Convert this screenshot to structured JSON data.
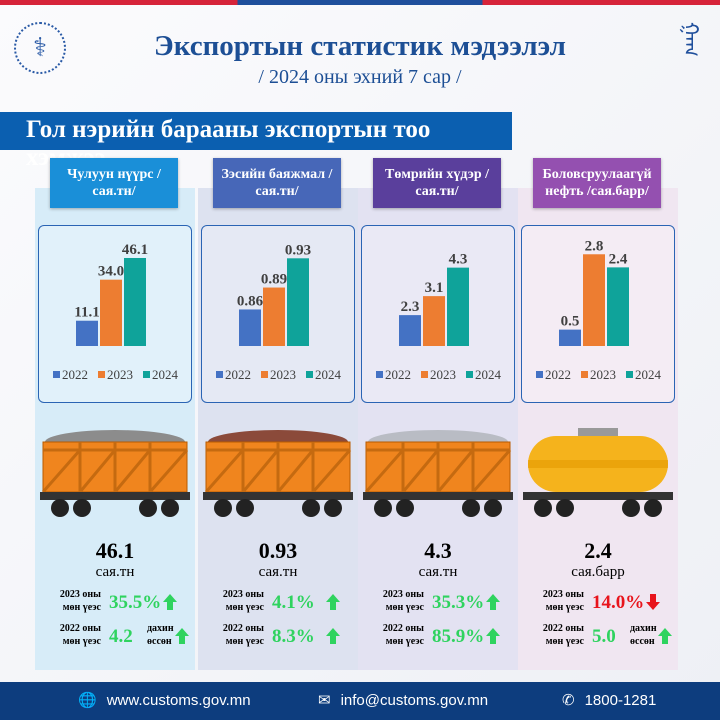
{
  "header": {
    "title": "Экспортын статистик мэдээлэл",
    "subtitle": "/ 2024 оны эхний  7 сар /"
  },
  "section_title": "Гол нэрийн барааны экспортын тоо хэмжээ",
  "colors": {
    "2022": "#4472c4",
    "2023": "#ed7d31",
    "2024": "#0fa39a",
    "up": "#2fd35f",
    "down": "#e8141c"
  },
  "chart_data": [
    {
      "type": "bar",
      "title": "Чулуун нүүрс /сая.тн/",
      "categories": [
        "2022",
        "2023",
        "2024"
      ],
      "values": [
        11.1,
        34.0,
        46.1
      ],
      "labels": [
        "11.1",
        "34.0",
        "46.1"
      ],
      "ylim": [
        -3,
        50
      ]
    },
    {
      "type": "bar",
      "title": "Зэсийн баяжмал /сая.тн/",
      "categories": [
        "2022",
        "2023",
        "2024"
      ],
      "values": [
        0.86,
        0.89,
        0.93
      ],
      "labels": [
        "0.86",
        "0.89",
        "0.93"
      ],
      "ylim": [
        0.81,
        0.94
      ]
    },
    {
      "type": "bar",
      "title": "Төмрийн хүдэр /сая.тн/",
      "categories": [
        "2022",
        "2023",
        "2024"
      ],
      "values": [
        2.3,
        3.1,
        4.3
      ],
      "labels": [
        "2.3",
        "3.1",
        "4.3"
      ],
      "ylim": [
        1.0,
        5.0
      ]
    },
    {
      "type": "bar",
      "title": "Боловсруулаагүй нефть /сая.барр/",
      "categories": [
        "2022",
        "2023",
        "2024"
      ],
      "values": [
        0.5,
        2.8,
        2.4
      ],
      "labels": [
        "0.5",
        "2.8",
        "2.4"
      ],
      "ylim": [
        0,
        2.9
      ]
    }
  ],
  "items": [
    {
      "head": "Чулуун нүүрс /сая.тн/",
      "value": "46.1",
      "unit": "сая.тн",
      "c1": {
        "label": "2023 оны мөн үеэс",
        "value": "35.5%",
        "dir": "up"
      },
      "c2": {
        "label": "2022 оны мөн үеэс",
        "value": "4.2",
        "suffix": "дахин өссөн",
        "dir": "up"
      }
    },
    {
      "head": "Зэсийн баяжмал /сая.тн/",
      "value": "0.93",
      "unit": "сая.тн",
      "c1": {
        "label": "2023 оны мөн үеэс",
        "value": "4.1%",
        "dir": "up"
      },
      "c2": {
        "label": "2022 оны мөн үеэс",
        "value": "8.3%",
        "dir": "up"
      }
    },
    {
      "head": "Төмрийн хүдэр /сая.тн/",
      "value": "4.3",
      "unit": "сая.тн",
      "c1": {
        "label": "2023 оны мөн үеэс",
        "value": "35.3%",
        "dir": "up"
      },
      "c2": {
        "label": "2022 оны мөн үеэс",
        "value": "85.9%",
        "dir": "up"
      }
    },
    {
      "head": "Боловсруулаагүй нефть /сая.барр/",
      "value": "2.4",
      "unit": "сая.барр",
      "c1": {
        "label": "2023 оны мөн үеэс",
        "value": "14.0%",
        "dir": "down"
      },
      "c2": {
        "label": "2022 оны мөн үеэс",
        "value": "5.0",
        "suffix": "дахин өссөн",
        "dir": "up"
      }
    }
  ],
  "footer": {
    "website": "www.customs.gov.mn",
    "email": "info@customs.gov.mn",
    "phone": "1800-1281"
  }
}
